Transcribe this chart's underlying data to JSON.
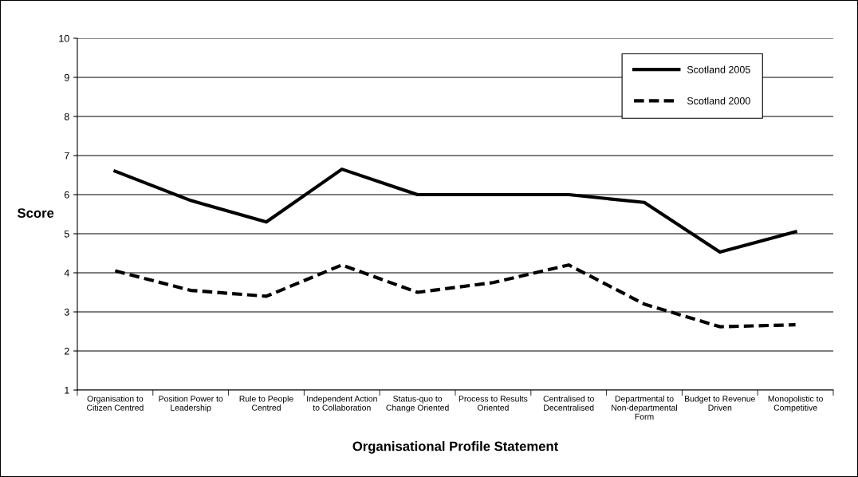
{
  "chart_data": {
    "type": "line",
    "xlabel": "Organisational Profile Statement",
    "ylabel": "Score",
    "categories": [
      "Organisation to\nCitizen Centred",
      "Position Power to\nLeadership",
      "Rule to People\nCentred",
      "Independent Action\nto Collaboration",
      "Status-quo to\nChange Oriented",
      "Process to Results\nOriented",
      "Centralised to\nDecentralised",
      "Departmental to\nNon-departmental\nForm",
      "Budget to Revenue\nDriven",
      "Monopolistic to\nCompetitive"
    ],
    "series": [
      {
        "name": "Scotland 2005",
        "color": "#000000",
        "line_style": "solid",
        "values": [
          6.6,
          5.85,
          5.3,
          6.65,
          6.0,
          6.0,
          6.0,
          5.8,
          4.53,
          5.05
        ]
      },
      {
        "name": "Scotland 2000",
        "color": "#000000",
        "line_style": "dashed",
        "values": [
          4.05,
          3.55,
          3.4,
          4.2,
          3.5,
          3.75,
          4.2,
          3.2,
          2.62,
          2.67
        ]
      }
    ],
    "ylim": [
      1,
      10
    ],
    "yticks": [
      1,
      2,
      3,
      4,
      5,
      6,
      7,
      8,
      9,
      10
    ],
    "grid": "y",
    "legend": "top right",
    "marker": "none"
  }
}
